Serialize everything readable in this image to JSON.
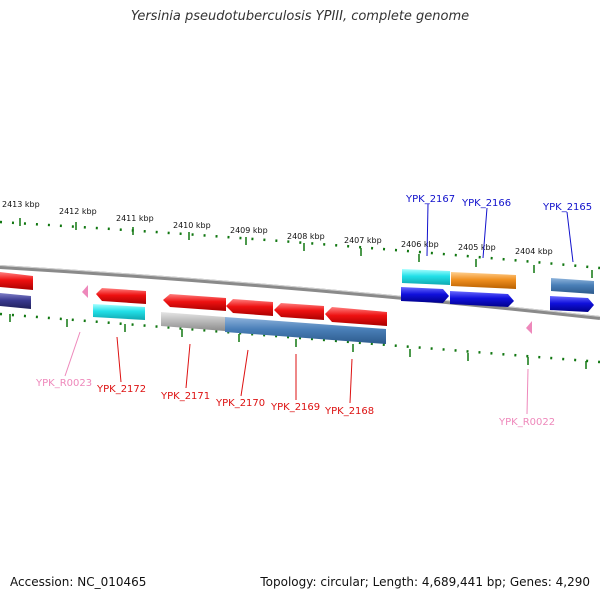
{
  "title": "Yersinia pseudotuberculosis YPIII, complete genome",
  "footer": {
    "accession": "Accession: NC_010465",
    "summary": "Topology: circular; Length: 4,689,441 bp; Genes: 4,290"
  },
  "colors": {
    "red_gene": "#ee1111",
    "blue_gene": "#1111dd",
    "cyan_gene": "#22e0e8",
    "steel_gene": "#4a7fb8",
    "gray_gene": "#b8b8b8",
    "orange_gene": "#f09020",
    "navy_gene": "#3a3a90",
    "rna_pink": "#ee88bb",
    "tick_green": "#117711",
    "backbone": "#888888"
  },
  "kbp_ticks": [
    "2413 kbp",
    "2412 kbp",
    "2411 kbp",
    "2410 kbp",
    "2409 kbp",
    "2408 kbp",
    "2407 kbp",
    "2406 kbp",
    "2405 kbp",
    "2404 kbp"
  ],
  "gene_labels": {
    "top": [
      "YPK_2167",
      "YPK_2166",
      "YPK_2165"
    ],
    "bottom_red": [
      "YPK_2172",
      "YPK_2171",
      "YPK_2170",
      "YPK_2169",
      "YPK_2168"
    ],
    "bottom_rna": [
      "YPK_R0023",
      "YPK_R0022"
    ]
  }
}
